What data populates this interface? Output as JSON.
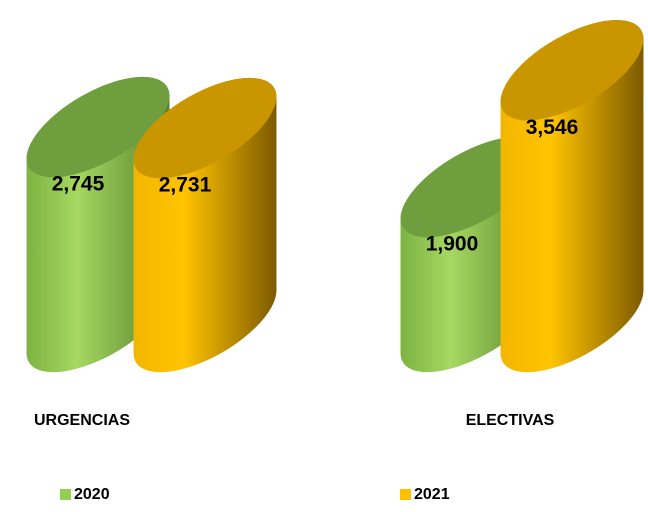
{
  "chart_data": {
    "type": "bar",
    "categories": [
      "URGENCIAS",
      "ELECTIVAS"
    ],
    "series": [
      {
        "name": "2020",
        "color": "#92d050",
        "values": [
          2745,
          1900
        ],
        "value_labels": [
          "2,745",
          "1,900"
        ]
      },
      {
        "name": "2021",
        "color": "#ffc000",
        "values": [
          2731,
          3546
        ],
        "value_labels": [
          "2,731",
          "3,546"
        ]
      }
    ],
    "legend": "bottom"
  }
}
